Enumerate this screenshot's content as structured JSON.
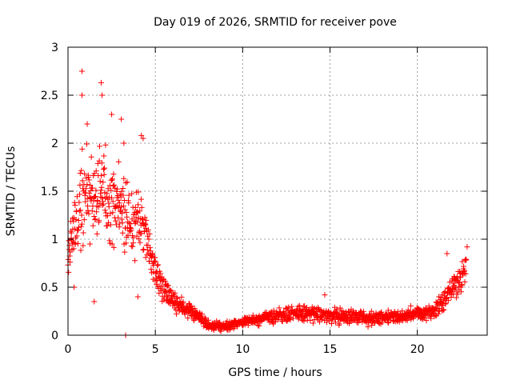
{
  "chart_data": {
    "type": "scatter",
    "title": "Day 019 of 2026, SRMTID for receiver pove",
    "xlabel": "GPS time / hours",
    "ylabel": "SRMTID / TECUs",
    "xlim": [
      0,
      24
    ],
    "ylim": [
      0,
      3
    ],
    "xticks": [
      0,
      5,
      10,
      15,
      20
    ],
    "xtick_labels": [
      "0",
      "5",
      "10",
      "15",
      "20"
    ],
    "yticks": [
      0,
      0.5,
      1,
      1.5,
      2,
      2.5,
      3
    ],
    "ytick_labels": [
      "0",
      "0.5",
      "1",
      "1.5",
      "2",
      "2.5",
      "3"
    ],
    "grid": true,
    "marker": "+",
    "color": "#ff0000",
    "series": [
      {
        "name": "SRMTID",
        "anchors_x": [
          0,
          0.5,
          1.0,
          1.5,
          2.0,
          2.5,
          3.0,
          3.5,
          4.0,
          4.5,
          4.8,
          5.5,
          6.0,
          7.0,
          7.5,
          8.0,
          9.0,
          10.0,
          11.0,
          12.0,
          13.0,
          14.0,
          15.0,
          16.0,
          17.0,
          18.0,
          19.0,
          20.0,
          21.0,
          21.5,
          22.0,
          22.5,
          22.8
        ],
        "anchors_y": [
          0.85,
          1.2,
          1.5,
          1.45,
          1.55,
          1.4,
          1.35,
          1.2,
          1.15,
          1.1,
          0.75,
          0.45,
          0.35,
          0.25,
          0.18,
          0.1,
          0.1,
          0.14,
          0.16,
          0.2,
          0.22,
          0.23,
          0.21,
          0.19,
          0.18,
          0.19,
          0.2,
          0.23,
          0.25,
          0.35,
          0.5,
          0.6,
          0.75
        ],
        "anchors_spread": [
          0.3,
          0.5,
          0.55,
          0.5,
          0.5,
          0.45,
          0.45,
          0.4,
          0.35,
          0.3,
          0.2,
          0.15,
          0.12,
          0.08,
          0.06,
          0.05,
          0.05,
          0.05,
          0.06,
          0.07,
          0.08,
          0.09,
          0.09,
          0.07,
          0.07,
          0.07,
          0.07,
          0.08,
          0.08,
          0.12,
          0.15,
          0.15,
          0.15
        ],
        "n_points": 1400,
        "outliers": [
          {
            "x": 0.8,
            "y": 2.75
          },
          {
            "x": 0.8,
            "y": 2.5
          },
          {
            "x": 1.9,
            "y": 2.63
          },
          {
            "x": 1.95,
            "y": 2.5
          },
          {
            "x": 2.5,
            "y": 2.3
          },
          {
            "x": 3.05,
            "y": 2.25
          },
          {
            "x": 1.1,
            "y": 2.2
          },
          {
            "x": 4.2,
            "y": 2.08
          },
          {
            "x": 4.3,
            "y": 2.05
          },
          {
            "x": 3.2,
            "y": 2.0
          },
          {
            "x": 1.5,
            "y": 0.35
          },
          {
            "x": 3.3,
            "y": 0.0
          },
          {
            "x": 4.0,
            "y": 0.4
          },
          {
            "x": 0.35,
            "y": 0.5
          },
          {
            "x": 14.7,
            "y": 0.42
          },
          {
            "x": 21.7,
            "y": 0.85
          },
          {
            "x": 22.85,
            "y": 0.92
          }
        ]
      }
    ]
  }
}
